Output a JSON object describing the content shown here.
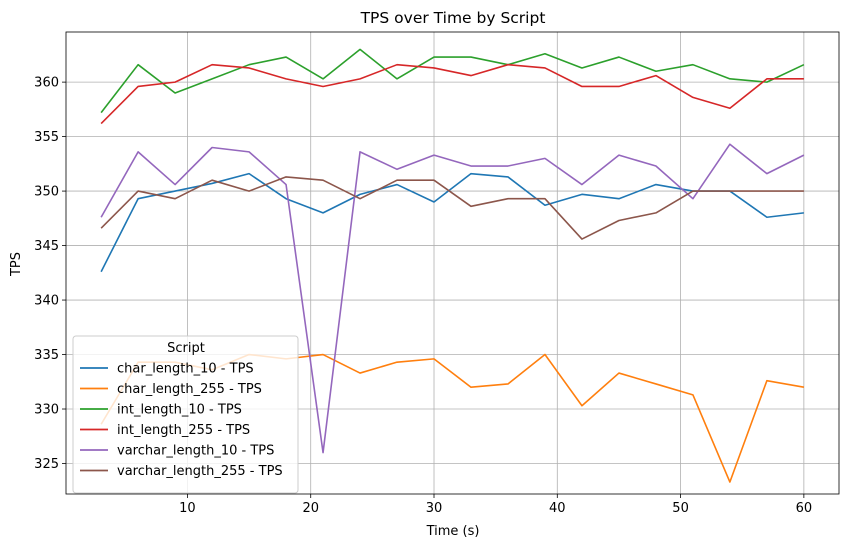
{
  "chart_data": {
    "type": "line",
    "title": "TPS over Time by Script",
    "xlabel": "Time (s)",
    "ylabel": "TPS",
    "xlim": [
      0.15,
      62.85
    ],
    "ylim": [
      322.2,
      364.6
    ],
    "xticks": [
      10,
      20,
      30,
      40,
      50,
      60
    ],
    "yticks": [
      325,
      330,
      335,
      340,
      345,
      350,
      355,
      360
    ],
    "grid": true,
    "legend": {
      "title": "Script",
      "placement": "lower-left"
    },
    "x": [
      3,
      6,
      9,
      12,
      15,
      18,
      21,
      24,
      27,
      30,
      33,
      36,
      39,
      42,
      45,
      48,
      51,
      54,
      57,
      60
    ],
    "series": [
      {
        "name": "char_length_10 - TPS",
        "color": "#1f77b4",
        "values": [
          342.6,
          349.3,
          350.0,
          350.7,
          351.6,
          349.3,
          348.0,
          349.7,
          350.6,
          349.0,
          351.6,
          351.3,
          348.7,
          349.7,
          349.3,
          350.6,
          350.0,
          350.0,
          347.6,
          348.0
        ]
      },
      {
        "name": "char_length_255 - TPS",
        "color": "#ff7f0e",
        "values": [
          328.6,
          334.3,
          334.3,
          333.6,
          335.0,
          334.6,
          335.0,
          333.3,
          334.3,
          334.6,
          332.0,
          332.3,
          335.0,
          330.3,
          333.3,
          332.3,
          331.3,
          323.3,
          332.6,
          332.0
        ]
      },
      {
        "name": "int_length_10 - TPS",
        "color": "#2ca02c",
        "values": [
          357.2,
          361.6,
          359.0,
          360.3,
          361.6,
          362.3,
          360.3,
          363.0,
          360.3,
          362.3,
          362.3,
          361.6,
          362.6,
          361.3,
          362.3,
          361.0,
          361.6,
          360.3,
          360.0,
          361.6
        ]
      },
      {
        "name": "int_length_255 - TPS",
        "color": "#d62728",
        "values": [
          356.2,
          359.6,
          360.0,
          361.6,
          361.3,
          360.3,
          359.6,
          360.3,
          361.6,
          361.3,
          360.6,
          361.6,
          361.3,
          359.6,
          359.6,
          360.6,
          358.6,
          357.6,
          360.3,
          360.3
        ]
      },
      {
        "name": "varchar_length_10 - TPS",
        "color": "#9467bd",
        "values": [
          347.6,
          353.6,
          350.6,
          354.0,
          353.6,
          350.6,
          326.0,
          353.6,
          352.0,
          353.3,
          352.3,
          352.3,
          353.0,
          350.6,
          353.3,
          352.3,
          349.3,
          354.3,
          351.6,
          353.3
        ]
      },
      {
        "name": "varchar_length_255 - TPS",
        "color": "#8c564b",
        "values": [
          346.6,
          350.0,
          349.3,
          351.0,
          350.0,
          351.3,
          351.0,
          349.3,
          351.0,
          351.0,
          348.6,
          349.3,
          349.3,
          345.6,
          347.3,
          348.0,
          350.0,
          350.0,
          350.0,
          350.0
        ]
      }
    ]
  }
}
